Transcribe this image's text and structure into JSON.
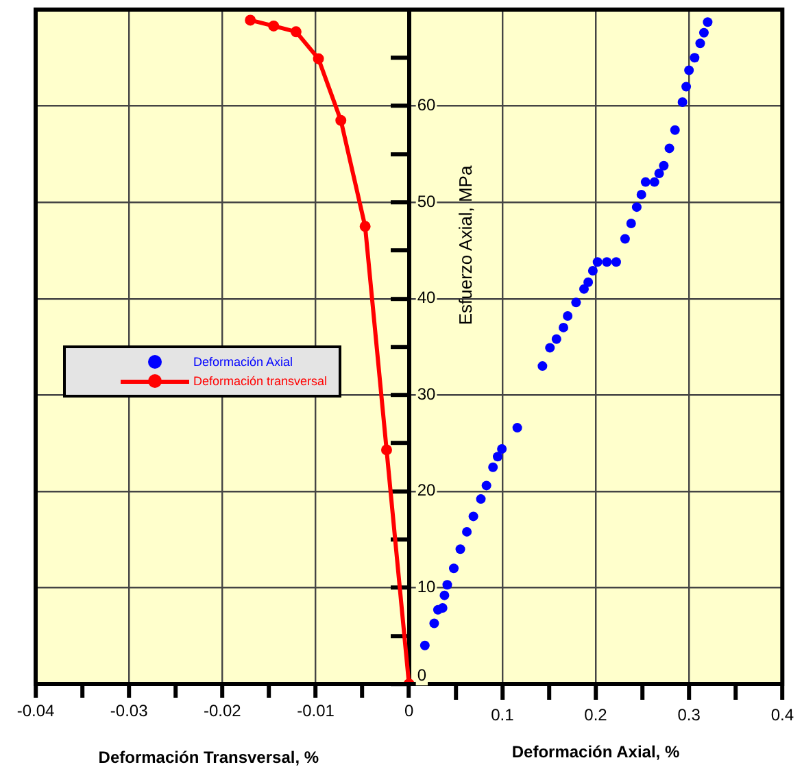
{
  "chart_data": {
    "type": "line",
    "xlabel": "Deformación Transversal, %",
    "x2label": "Deformación Axial, %",
    "ylabel": "Esfuerzo Axial, MPa",
    "xlim": [
      -0.04,
      0.04
    ],
    "xticks": [
      -0.04,
      {
        "value": -0.035,
        "label": null
      },
      -0.03,
      {
        "value": -0.025,
        "label": null
      },
      -0.02,
      {
        "value": -0.015,
        "label": null
      },
      -0.01,
      {
        "value": -0.005,
        "label": null
      },
      0
    ],
    "x2lim": [
      -0.4,
      0.4
    ],
    "x2ticks": [
      {
        "value": 0.05,
        "label": null
      },
      0.1,
      {
        "value": 0.15,
        "label": null
      },
      0.2,
      {
        "value": 0.25,
        "label": null
      },
      0.3,
      {
        "value": 0.35,
        "label": null
      },
      0.4
    ],
    "ylim": [
      0,
      70
    ],
    "yticks": [
      0,
      {
        "value": 5,
        "label": null
      },
      10,
      {
        "value": 15,
        "label": null
      },
      20,
      {
        "value": 25,
        "label": null
      },
      30,
      {
        "value": 35,
        "label": null
      },
      40,
      {
        "value": 45,
        "label": null
      },
      50,
      {
        "value": 55,
        "label": null
      },
      60,
      {
        "value": 65,
        "label": null
      }
    ],
    "grid": true,
    "legend": "left",
    "marker": "circle",
    "series": [
      {
        "name": "Deformación Axial",
        "type": "scatter",
        "axis": "x2",
        "color": "#0000ff",
        "x": [
          0.017,
          0.027,
          0.031,
          0.036,
          0.038,
          0.041,
          0.048,
          0.055,
          0.062,
          0.069,
          0.077,
          0.083,
          0.09,
          0.095,
          0.0995,
          0.116,
          0.143,
          0.151,
          0.158,
          0.1655,
          0.17,
          0.179,
          0.1875,
          0.192,
          0.197,
          0.202,
          0.212,
          0.222,
          0.2315,
          0.238,
          0.244,
          0.249,
          0.2535,
          0.263,
          0.268,
          0.273,
          0.279,
          0.285,
          0.293,
          0.297,
          0.3,
          0.306,
          0.312,
          0.316,
          0.32
        ],
        "values": [
          4.0,
          6.3,
          7.7,
          7.9,
          9.2,
          10.3,
          12.0,
          14.0,
          15.8,
          17.4,
          19.2,
          20.6,
          22.5,
          23.6,
          24.4,
          26.6,
          33.0,
          34.9,
          35.8,
          37.0,
          38.2,
          39.6,
          41.0,
          41.7,
          42.9,
          43.8,
          43.8,
          43.8,
          46.2,
          47.8,
          49.5,
          50.8,
          52.1,
          52.1,
          53.0,
          53.8,
          55.6,
          57.5,
          60.4,
          62.0,
          63.7,
          65.0,
          66.5,
          67.6,
          68.7
        ]
      },
      {
        "name": "Deformación transversal",
        "type": "line",
        "color": "#ff0000",
        "x": [
          0,
          -0.0024,
          -0.0047,
          -0.0073,
          -0.0097,
          -0.0121,
          -0.0145,
          -0.017
        ],
        "values": [
          0,
          24.3,
          47.5,
          58.5,
          64.9,
          67.7,
          68.3,
          68.9
        ]
      }
    ]
  }
}
